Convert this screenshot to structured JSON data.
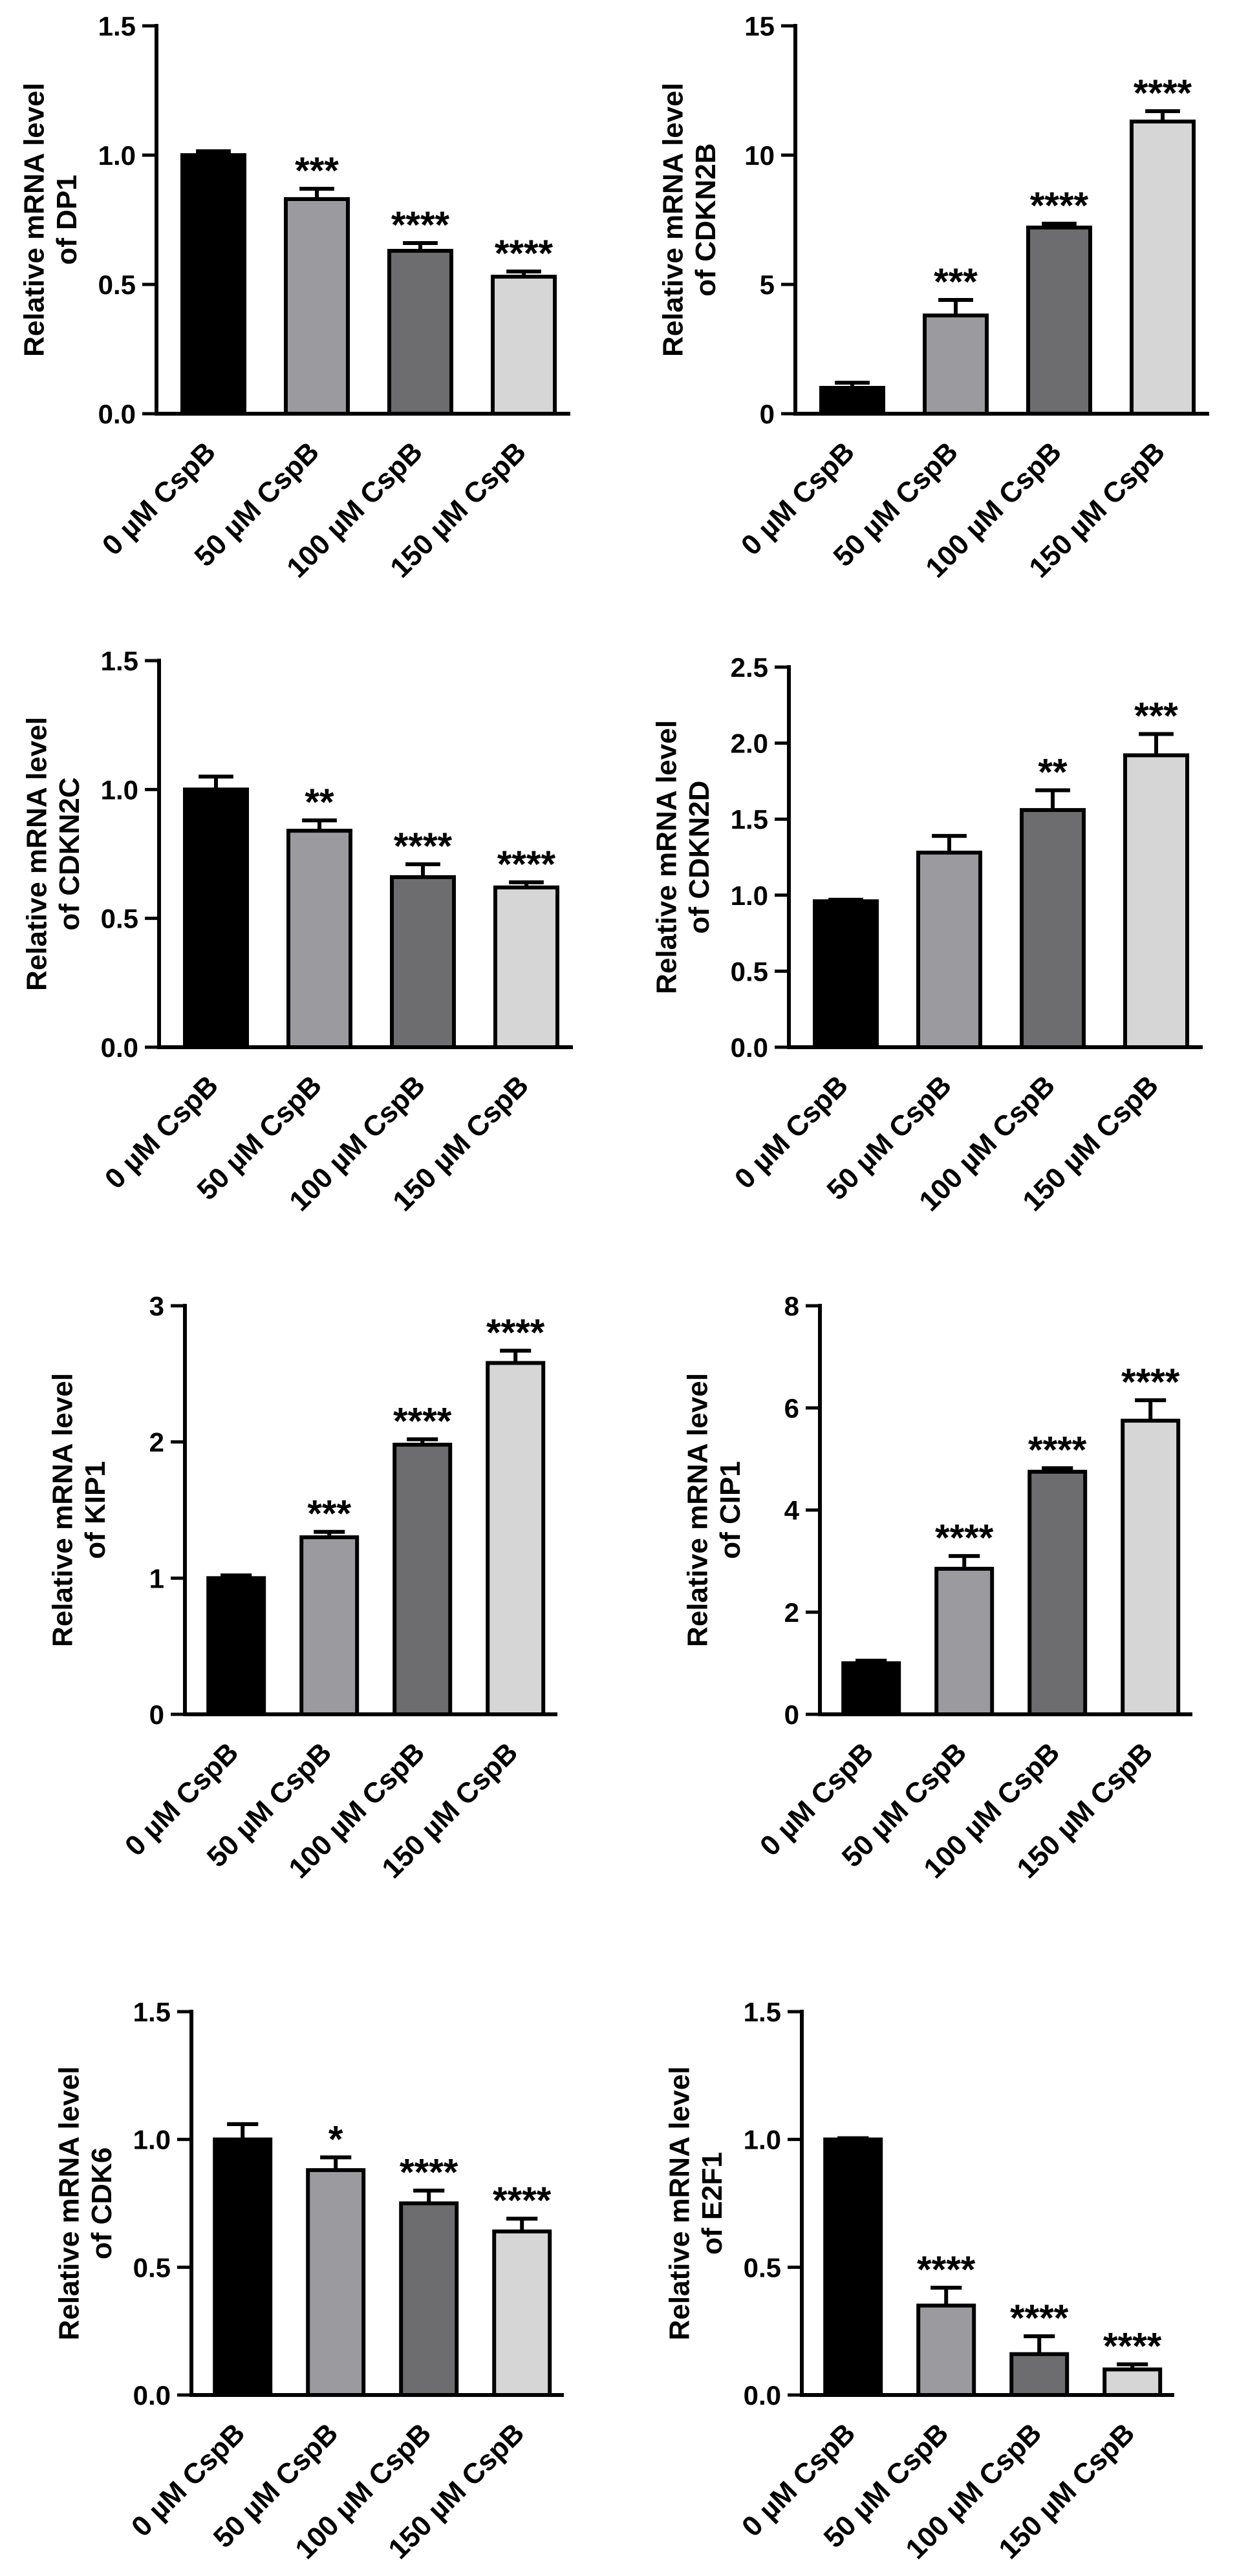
{
  "chart_data": [
    {
      "type": "bar",
      "title": "",
      "xlabel": "",
      "ylabel": [
        "Relative mRNA level",
        "of DP1"
      ],
      "categories": [
        "0 µM CspB",
        "50 µM CspB",
        "100 µM CspB",
        "150 µM CspB"
      ],
      "values": [
        1.0,
        0.83,
        0.63,
        0.53
      ],
      "errors": [
        0.015,
        0.04,
        0.03,
        0.02
      ],
      "significance": [
        "",
        "***",
        "****",
        "****"
      ],
      "ylim": [
        0,
        1.5
      ],
      "yticks": [
        "0.0",
        "0.5",
        "1.0",
        "1.5"
      ]
    },
    {
      "type": "bar",
      "title": "",
      "xlabel": "",
      "ylabel": [
        "Relative mRNA level",
        "of CDKN2B"
      ],
      "categories": [
        "0 µM CspB",
        "50 µM CspB",
        "100 µM CspB",
        "150 µM CspB"
      ],
      "values": [
        1.0,
        3.8,
        7.2,
        11.3
      ],
      "errors": [
        0.2,
        0.6,
        0.15,
        0.4
      ],
      "significance": [
        "",
        "***",
        "****",
        "****"
      ],
      "ylim": [
        0,
        15
      ],
      "yticks": [
        "0",
        "5",
        "10",
        "15"
      ]
    },
    {
      "type": "bar",
      "title": "",
      "xlabel": "",
      "ylabel": [
        "Relative mRNA level",
        "of CDKN2C"
      ],
      "categories": [
        "0 µM CspB",
        "50 µM CspB",
        "100 µM CspB",
        "150 µM CspB"
      ],
      "values": [
        1.0,
        0.84,
        0.66,
        0.62
      ],
      "errors": [
        0.05,
        0.04,
        0.05,
        0.02
      ],
      "significance": [
        "",
        "**",
        "****",
        "****"
      ],
      "ylim": [
        0,
        1.5
      ],
      "yticks": [
        "0.0",
        "0.5",
        "1.0",
        "1.5"
      ]
    },
    {
      "type": "bar",
      "title": "",
      "xlabel": "",
      "ylabel": [
        "Relative mRNA level",
        "of CDKN2D"
      ],
      "categories": [
        "0 µM CspB",
        "50 µM CspB",
        "100 µM CspB",
        "150 µM CspB"
      ],
      "values": [
        0.96,
        1.28,
        1.56,
        1.92
      ],
      "errors": [
        0.01,
        0.11,
        0.13,
        0.14
      ],
      "significance": [
        "",
        "",
        "**",
        "***"
      ],
      "ylim": [
        0,
        2.5
      ],
      "yticks": [
        "0.0",
        "0.5",
        "1.0",
        "1.5",
        "2.0",
        "2.5"
      ]
    },
    {
      "type": "bar",
      "title": "",
      "xlabel": "",
      "ylabel": [
        "Relative mRNA level",
        "of KIP1"
      ],
      "categories": [
        "0 µM CspB",
        "50 µM CspB",
        "100 µM CspB",
        "150 µM CspB"
      ],
      "values": [
        1.0,
        1.3,
        1.98,
        2.58
      ],
      "errors": [
        0.02,
        0.04,
        0.04,
        0.09
      ],
      "significance": [
        "",
        "***",
        "****",
        "****"
      ],
      "ylim": [
        0,
        3
      ],
      "yticks": [
        "0",
        "1",
        "2",
        "3"
      ]
    },
    {
      "type": "bar",
      "title": "",
      "xlabel": "",
      "ylabel": [
        "Relative mRNA level",
        "of CIP1"
      ],
      "categories": [
        "0 µM CspB",
        "50 µM CspB",
        "100 µM CspB",
        "150 µM CspB"
      ],
      "values": [
        1.0,
        2.85,
        4.75,
        5.75
      ],
      "errors": [
        0.05,
        0.25,
        0.07,
        0.4
      ],
      "significance": [
        "",
        "****",
        "****",
        "****"
      ],
      "ylim": [
        0,
        8
      ],
      "yticks": [
        "0",
        "2",
        "4",
        "6",
        "8"
      ]
    },
    {
      "type": "bar",
      "title": "",
      "xlabel": "",
      "ylabel": [
        "Relative mRNA level",
        "of CDK6"
      ],
      "categories": [
        "0 µM CspB",
        "50 µM CspB",
        "100 µM CspB",
        "150 µM CspB"
      ],
      "values": [
        1.0,
        0.88,
        0.75,
        0.64
      ],
      "errors": [
        0.06,
        0.05,
        0.05,
        0.05
      ],
      "significance": [
        "",
        "*",
        "****",
        "****"
      ],
      "ylim": [
        0,
        1.5
      ],
      "yticks": [
        "0.0",
        "0.5",
        "1.0",
        "1.5"
      ]
    },
    {
      "type": "bar",
      "title": "",
      "xlabel": "",
      "ylabel": [
        "Relative mRNA level",
        "of E2F1"
      ],
      "categories": [
        "0 µM CspB",
        "50 µM CspB",
        "100 µM CspB",
        "150 µM CspB"
      ],
      "values": [
        1.0,
        0.35,
        0.16,
        0.1
      ],
      "errors": [
        0.005,
        0.07,
        0.07,
        0.02
      ],
      "significance": [
        "",
        "****",
        "****",
        "****"
      ],
      "ylim": [
        0,
        1.5
      ],
      "yticks": [
        "0.0",
        "0.5",
        "1.0",
        "1.5"
      ]
    }
  ],
  "colors": {
    "bar_fills": [
      "#000000",
      "#9b9b9f",
      "#6d6d6f",
      "#d6d6d6"
    ],
    "axis": "#000000"
  }
}
